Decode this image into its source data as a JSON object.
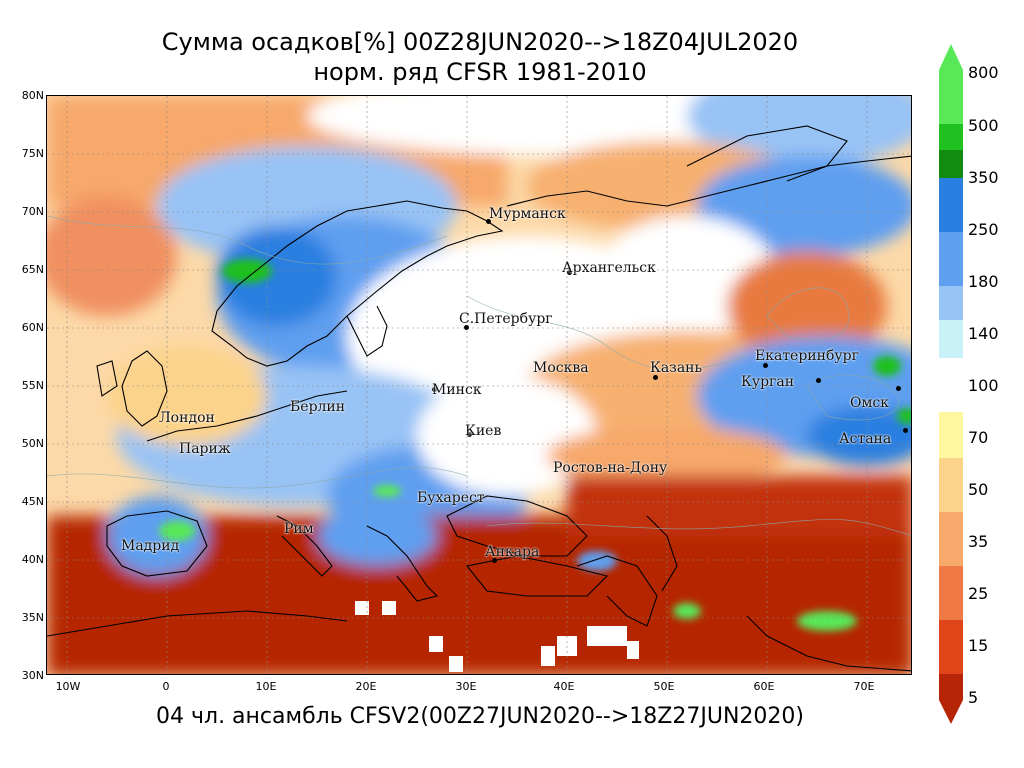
{
  "title": {
    "line1": "Сумма осадков[%] 00Z28JUN2020-->18Z04JUL2020",
    "line2": "норм. ряд CFSR 1981-2010"
  },
  "subtitle": "04 чл. ансамбль CFSV2(00Z27JUN2020-->18Z27JUN2020)",
  "lat_labels": [
    "80N",
    "75N",
    "70N",
    "65N",
    "60N",
    "55N",
    "50N",
    "45N",
    "40N",
    "35N",
    "30N"
  ],
  "lon_labels": [
    "10W",
    "0",
    "10E",
    "20E",
    "30E",
    "40E",
    "50E",
    "60E",
    "70E"
  ],
  "cities": [
    {
      "name": "Мурманск"
    },
    {
      "name": "Архангельск"
    },
    {
      "name": "С.Петербург"
    },
    {
      "name": "Москва"
    },
    {
      "name": "Казань"
    },
    {
      "name": "Екатеринбург"
    },
    {
      "name": "Курган"
    },
    {
      "name": "Омск"
    },
    {
      "name": "Астана"
    },
    {
      "name": "Минск"
    },
    {
      "name": "Берлин"
    },
    {
      "name": "Лондон"
    },
    {
      "name": "Париж"
    },
    {
      "name": "Киев"
    },
    {
      "name": "Ростов-на-Дону"
    },
    {
      "name": "Бухарест"
    },
    {
      "name": "Рим"
    },
    {
      "name": "Мадрид"
    },
    {
      "name": "Анкара"
    }
  ],
  "colorbar": {
    "labels": [
      "800",
      "500",
      "350",
      "250",
      "180",
      "140",
      "100",
      "70",
      "50",
      "35",
      "25",
      "15",
      "5"
    ],
    "colors": [
      "#58e858",
      "#1fc01f",
      "#118c11",
      "#2b7fe0",
      "#5e9ff0",
      "#98c3f5",
      "#c8f2f8",
      "#ffffff",
      "#fff7a0",
      "#fcd38a",
      "#f7a86a",
      "#f07a45",
      "#e0451a",
      "#b52506"
    ]
  },
  "legend_colors": {
    "very_dry": "#b52506",
    "dry": "#e0451a",
    "moderate_dry": "#f7a86a",
    "normal": "#ffffff",
    "wet": "#98c3f5",
    "very_wet": "#2b7fe0",
    "extreme": "#1fc01f"
  }
}
